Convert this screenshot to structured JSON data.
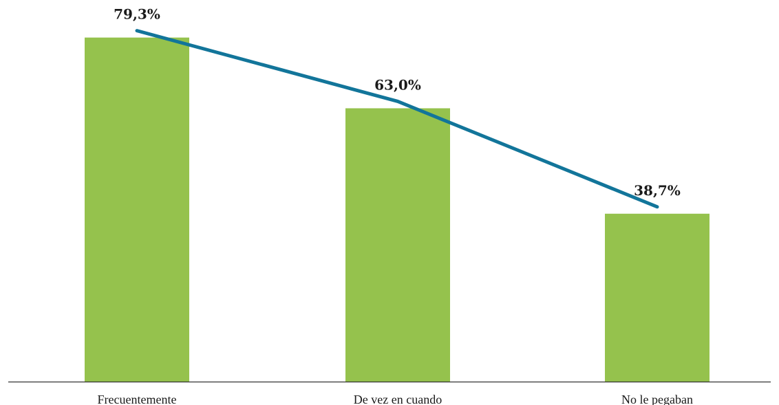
{
  "chart_data": {
    "type": "bar",
    "categories": [
      "Frecuentemente",
      "De vez en cuando",
      "No le pegaban"
    ],
    "values": [
      79.3,
      63.0,
      38.7
    ],
    "value_labels": [
      "79,3%",
      "63,0%",
      "38,7%"
    ],
    "title": "",
    "xlabel": "",
    "ylabel": "",
    "ylim": [
      0,
      85
    ],
    "grid": false,
    "trend_line": true,
    "colors": {
      "bars": "#95c24d",
      "trend_line": "#12759a",
      "axis": "#333333",
      "text": "#1a1a1a"
    }
  }
}
